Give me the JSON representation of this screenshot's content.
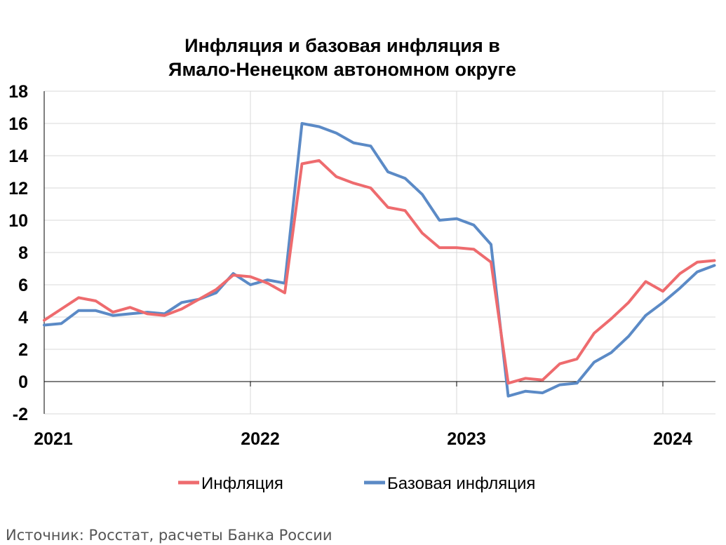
{
  "chart_data": {
    "type": "line",
    "title_lines": [
      "Инфляция и базовая инфляция в",
      "Ямало-Ненецком автономном округе"
    ],
    "ylim": [
      -2,
      18
    ],
    "yticks": [
      18,
      16,
      14,
      12,
      10,
      8,
      6,
      4,
      2,
      0,
      -2
    ],
    "xlim": [
      2021.0,
      2024.25
    ],
    "x_tick_labels": [
      {
        "label": "2021",
        "x": 2021.0
      },
      {
        "label": "2022",
        "x": 2022.0
      },
      {
        "label": "2023",
        "x": 2023.0
      },
      {
        "label": "2024",
        "x": 2024.0
      }
    ],
    "grid": true,
    "legend_position": "bottom",
    "x_start": "2021-01",
    "x_step": "month",
    "series": [
      {
        "name": "Инфляция",
        "color": "#EE6B6E",
        "values": [
          3.8,
          4.5,
          5.2,
          5.0,
          4.3,
          4.6,
          4.2,
          4.1,
          4.5,
          5.1,
          5.7,
          6.6,
          6.5,
          6.1,
          5.5,
          13.5,
          13.7,
          12.7,
          12.3,
          12.0,
          10.8,
          10.6,
          9.2,
          8.3,
          8.3,
          8.2,
          7.4,
          -0.1,
          0.2,
          0.1,
          1.1,
          1.4,
          3.0,
          3.9,
          4.9,
          6.2,
          5.6,
          6.7,
          7.4,
          7.5
        ]
      },
      {
        "name": "Базовая инфляция",
        "color": "#5B8AC6",
        "values": [
          3.5,
          3.6,
          4.4,
          4.4,
          4.1,
          4.2,
          4.3,
          4.2,
          4.9,
          5.1,
          5.5,
          6.7,
          6.0,
          6.3,
          6.1,
          16.0,
          15.8,
          15.4,
          14.8,
          14.6,
          13.0,
          12.6,
          11.6,
          10.0,
          10.1,
          9.7,
          8.5,
          -0.9,
          -0.6,
          -0.7,
          -0.2,
          -0.1,
          1.2,
          1.8,
          2.8,
          4.1,
          4.9,
          5.8,
          6.8,
          7.2
        ]
      }
    ]
  },
  "source_text": "Источник: Росстат, расчеты Банка России"
}
